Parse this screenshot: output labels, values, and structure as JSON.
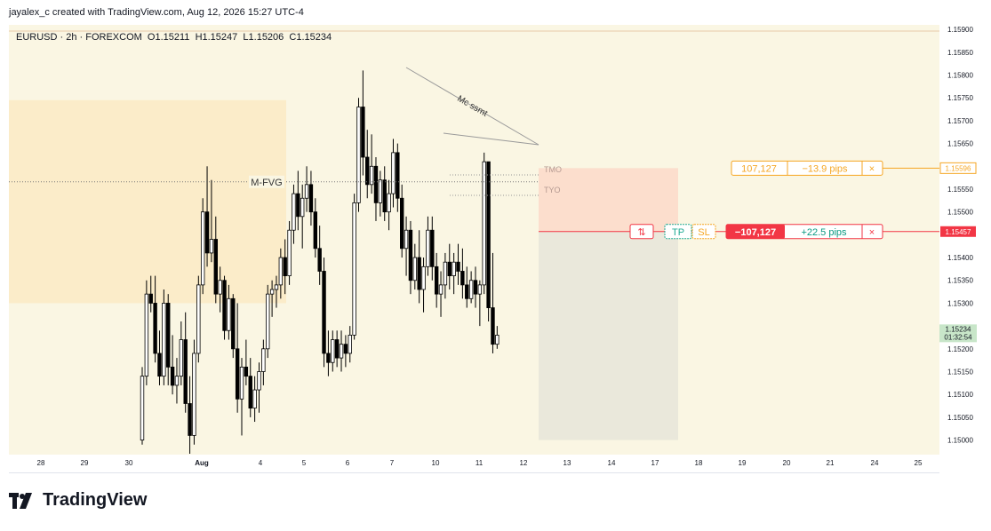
{
  "header": {
    "text": "jayalex_c created with TradingView.com, Aug 12, 2026 15:27 UTC-4"
  },
  "symbol": {
    "name": "EURUSD · 2h · FOREXCOM",
    "open": "O1.15211",
    "high": "H1.15247",
    "low": "L1.15206",
    "close": "C1.15234"
  },
  "annotations": {
    "fvg_label": "M-FVG",
    "trendline_label": "Mc ssmt",
    "tmo_label": "TMO",
    "tyo_label": "TYO"
  },
  "position_tool": {
    "tp_box": {
      "qty": "107,127",
      "pips": "−13.9 pips",
      "close": "×",
      "price": "1.15596"
    },
    "sl_box": {
      "qty": "−107,127",
      "pips": "+22.5 pips",
      "close": "×",
      "price": "1.15457"
    },
    "buttons": {
      "reverse": "⇅",
      "tp": "TP",
      "sl": "SL"
    }
  },
  "last_price": {
    "price": "1.15234",
    "countdown": "01:32:54"
  },
  "colors": {
    "background": "#faf6e3",
    "fvg_zone": "#fbecc9",
    "up_candle": "#ffffff",
    "down_candle": "#000000",
    "tp_color": "#f5a623",
    "sl_color": "#f23645",
    "profit_zone": "#e8e7d9",
    "loss_zone": "#fbd9c9",
    "last_price_bg": "#c8e6c9"
  },
  "footer": {
    "brand": "TradingView"
  },
  "chart_data": {
    "type": "candlestick",
    "symbol": "EURUSD",
    "timeframe": "2h",
    "x_tick_labels": [
      "28",
      "29",
      "30",
      "Aug",
      "4",
      "5",
      "6",
      "7",
      "10",
      "11",
      "12",
      "13",
      "14",
      "17",
      "18",
      "19",
      "20",
      "21",
      "24",
      "25"
    ],
    "y_tick_labels": [
      "1.15900",
      "1.15850",
      "1.15800",
      "1.15750",
      "1.15700",
      "1.15650",
      "1.15600",
      "1.15550",
      "1.15500",
      "1.15450",
      "1.15400",
      "1.15350",
      "1.15300",
      "1.15250",
      "1.15200",
      "1.15150",
      "1.15100",
      "1.15050",
      "1.15000"
    ],
    "ylim": [
      1.1497,
      1.1591
    ],
    "candles": [
      [
        1.15,
        1.1516,
        1.1499,
        1.1514
      ],
      [
        1.1514,
        1.1535,
        1.1512,
        1.1532
      ],
      [
        1.1532,
        1.1536,
        1.1528,
        1.153
      ],
      [
        1.153,
        1.1536,
        1.1517,
        1.1519
      ],
      [
        1.1519,
        1.1524,
        1.1512,
        1.1514
      ],
      [
        1.1514,
        1.1533,
        1.1512,
        1.153
      ],
      [
        1.153,
        1.1532,
        1.1512,
        1.1516
      ],
      [
        1.1516,
        1.1523,
        1.151,
        1.1512
      ],
      [
        1.1512,
        1.1518,
        1.1508,
        1.1514
      ],
      [
        1.1514,
        1.1526,
        1.1512,
        1.1522
      ],
      [
        1.1522,
        1.1528,
        1.1506,
        1.1508
      ],
      [
        1.1508,
        1.1514,
        1.1497,
        1.1501
      ],
      [
        1.1501,
        1.1522,
        1.1499,
        1.1519
      ],
      [
        1.1519,
        1.1536,
        1.1517,
        1.1534
      ],
      [
        1.1534,
        1.1553,
        1.1532,
        1.155
      ],
      [
        1.155,
        1.156,
        1.1538,
        1.1541
      ],
      [
        1.1541,
        1.1557,
        1.1539,
        1.1544
      ],
      [
        1.1544,
        1.1549,
        1.153,
        1.1532
      ],
      [
        1.1532,
        1.1538,
        1.1528,
        1.1535
      ],
      [
        1.1535,
        1.1536,
        1.1522,
        1.1524
      ],
      [
        1.1524,
        1.1534,
        1.1522,
        1.1531
      ],
      [
        1.1531,
        1.1532,
        1.1518,
        1.152
      ],
      [
        1.152,
        1.153,
        1.1506,
        1.1509
      ],
      [
        1.1509,
        1.1518,
        1.1501,
        1.1516
      ],
      [
        1.1516,
        1.1522,
        1.1512,
        1.1514
      ],
      [
        1.1514,
        1.1518,
        1.1505,
        1.1507
      ],
      [
        1.1507,
        1.1514,
        1.1504,
        1.1511
      ],
      [
        1.1511,
        1.1517,
        1.1506,
        1.1515
      ],
      [
        1.1515,
        1.1522,
        1.1512,
        1.152
      ],
      [
        1.152,
        1.1534,
        1.1518,
        1.1532
      ],
      [
        1.1532,
        1.1535,
        1.1527,
        1.1533
      ],
      [
        1.1533,
        1.1536,
        1.1529,
        1.1534
      ],
      [
        1.1534,
        1.1542,
        1.1531,
        1.154
      ],
      [
        1.154,
        1.1544,
        1.1532,
        1.1536
      ],
      [
        1.1536,
        1.1548,
        1.1534,
        1.1546
      ],
      [
        1.1546,
        1.1556,
        1.1543,
        1.1554
      ],
      [
        1.1554,
        1.1559,
        1.1546,
        1.1549
      ],
      [
        1.1549,
        1.1556,
        1.1542,
        1.1553
      ],
      [
        1.1553,
        1.156,
        1.155,
        1.1556
      ],
      [
        1.1556,
        1.1559,
        1.1547,
        1.155
      ],
      [
        1.155,
        1.1553,
        1.154,
        1.1542
      ],
      [
        1.1542,
        1.1547,
        1.1534,
        1.1537
      ],
      [
        1.1537,
        1.154,
        1.1516,
        1.1519
      ],
      [
        1.1519,
        1.1524,
        1.1514,
        1.1517
      ],
      [
        1.1517,
        1.1524,
        1.1515,
        1.1522
      ],
      [
        1.1522,
        1.1524,
        1.1516,
        1.1518
      ],
      [
        1.1518,
        1.1524,
        1.1515,
        1.1521
      ],
      [
        1.1521,
        1.1523,
        1.1516,
        1.1519
      ],
      [
        1.1519,
        1.1525,
        1.1517,
        1.1523
      ],
      [
        1.1523,
        1.1554,
        1.1522,
        1.1552
      ],
      [
        1.1552,
        1.1575,
        1.155,
        1.1573
      ],
      [
        1.1573,
        1.1581,
        1.1558,
        1.1562
      ],
      [
        1.1562,
        1.1568,
        1.1553,
        1.1556
      ],
      [
        1.1556,
        1.1567,
        1.1554,
        1.156
      ],
      [
        1.156,
        1.1562,
        1.1548,
        1.1552
      ],
      [
        1.1552,
        1.1559,
        1.1549,
        1.1557
      ],
      [
        1.1557,
        1.156,
        1.1548,
        1.155
      ],
      [
        1.155,
        1.1557,
        1.1546,
        1.1554
      ],
      [
        1.1554,
        1.1566,
        1.1551,
        1.1563
      ],
      [
        1.1563,
        1.1565,
        1.155,
        1.1553
      ],
      [
        1.1553,
        1.1556,
        1.154,
        1.1542
      ],
      [
        1.1542,
        1.1549,
        1.1536,
        1.1546
      ],
      [
        1.1546,
        1.1548,
        1.1532,
        1.1535
      ],
      [
        1.1535,
        1.1543,
        1.1533,
        1.154
      ],
      [
        1.154,
        1.1546,
        1.153,
        1.1533
      ],
      [
        1.1533,
        1.154,
        1.1528,
        1.1538
      ],
      [
        1.1538,
        1.1549,
        1.1536,
        1.1546
      ],
      [
        1.1546,
        1.1549,
        1.1535,
        1.1538
      ],
      [
        1.1538,
        1.1541,
        1.1529,
        1.1532
      ],
      [
        1.1532,
        1.1537,
        1.1527,
        1.1534
      ],
      [
        1.1534,
        1.1541,
        1.1531,
        1.1539
      ],
      [
        1.1539,
        1.1543,
        1.1533,
        1.1536
      ],
      [
        1.1536,
        1.1541,
        1.1532,
        1.1539
      ],
      [
        1.1539,
        1.1543,
        1.1534,
        1.1537
      ],
      [
        1.1537,
        1.1542,
        1.1531,
        1.1534
      ],
      [
        1.1534,
        1.1538,
        1.1529,
        1.1531
      ],
      [
        1.1531,
        1.1537,
        1.153,
        1.1535
      ],
      [
        1.1535,
        1.1538,
        1.1529,
        1.1532
      ],
      [
        1.1532,
        1.1535,
        1.1525,
        1.1534
      ],
      [
        1.1534,
        1.1563,
        1.1532,
        1.1561
      ],
      [
        1.1561,
        1.1561,
        1.1526,
        1.1529
      ],
      [
        1.1529,
        1.1541,
        1.1519,
        1.1521
      ],
      [
        1.1521,
        1.1525,
        1.152,
        1.1523
      ]
    ],
    "drawings": {
      "fvg_zone": {
        "start": "27",
        "end": "4",
        "top": 1.15745,
        "bottom": 1.153
      },
      "mfvg_level": 1.15566,
      "tmo_level": 1.1558,
      "tyo_level": 1.1554,
      "position": {
        "entry": 1.15457,
        "target": 1.15,
        "stop": 1.15596
      }
    }
  }
}
